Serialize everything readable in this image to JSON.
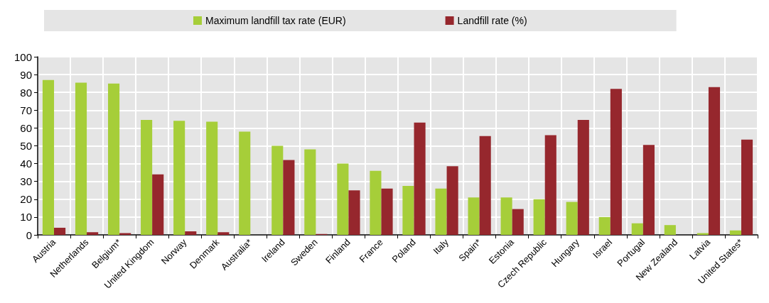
{
  "chart_data": {
    "type": "bar",
    "categories": [
      "Austria",
      "Netherlands",
      "Belgium*",
      "United Kingdom",
      "Norway",
      "Denmark",
      "Australia*",
      "Ireland",
      "Sweden",
      "Finland",
      "France",
      "Poland",
      "Italy",
      "Spain*",
      "Estonia",
      "Czech Republic",
      "Hungary",
      "Israel",
      "Portugal",
      "New Zealand",
      "Latvia",
      "United States*"
    ],
    "series": [
      {
        "name": "Maximum landfill tax rate (EUR)",
        "color": "#a6ce39",
        "values": [
          87,
          85.5,
          85,
          64.5,
          64,
          63.5,
          58,
          50,
          48,
          40,
          36,
          27.5,
          26,
          21,
          21,
          20,
          18.5,
          10,
          6.5,
          5.5,
          1,
          2.5
        ]
      },
      {
        "name": "Landfill rate (%)",
        "color": "#96272d",
        "values": [
          4,
          1.5,
          1,
          34,
          2,
          1.5,
          null,
          42,
          0.5,
          25,
          26,
          63,
          38.5,
          55.5,
          14.5,
          56,
          64.5,
          82,
          50.5,
          null,
          83,
          53.5
        ]
      }
    ],
    "ylim": [
      0,
      100
    ],
    "yticks": [
      0,
      10,
      20,
      30,
      40,
      50,
      60,
      70,
      80,
      90,
      100
    ],
    "grid": true,
    "legend": "top"
  }
}
